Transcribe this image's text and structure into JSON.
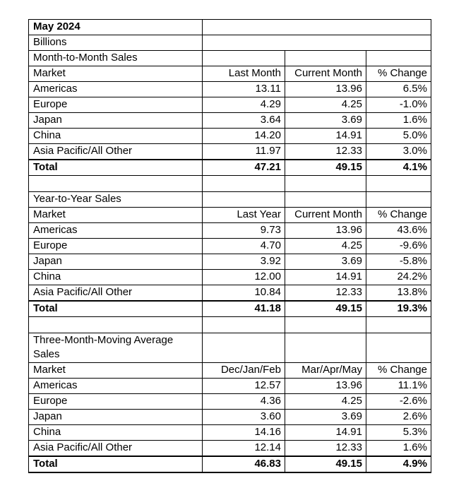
{
  "page": {
    "background_color": "#ffffff",
    "text_color": "#000000",
    "border_color": "#000000"
  },
  "report": {
    "title": "May 2024",
    "units": "Billions",
    "total_label": "Total",
    "sections": [
      {
        "label": "Month-to-Month Sales",
        "headers": [
          "Market",
          "Last Month",
          "Current Month",
          "% Change"
        ],
        "rows": [
          [
            "Americas",
            "13.11",
            "13.96",
            "6.5%"
          ],
          [
            "Europe",
            "4.29",
            "4.25",
            "-1.0%"
          ],
          [
            "Japan",
            "3.64",
            "3.69",
            "1.6%"
          ],
          [
            "China",
            "14.20",
            "14.91",
            "5.0%"
          ],
          [
            "Asia Pacific/All Other",
            "11.97",
            "12.33",
            "3.0%"
          ]
        ],
        "total": [
          "Total",
          "47.21",
          "49.15",
          "4.1%"
        ]
      },
      {
        "label": "Year-to-Year Sales",
        "headers": [
          "Market",
          "Last Year",
          "Current Month",
          "% Change"
        ],
        "rows": [
          [
            "Americas",
            "9.73",
            "13.96",
            "43.6%"
          ],
          [
            "Europe",
            "4.70",
            "4.25",
            "-9.6%"
          ],
          [
            "Japan",
            "3.92",
            "3.69",
            "-5.8%"
          ],
          [
            "China",
            "12.00",
            "14.91",
            "24.2%"
          ],
          [
            "Asia Pacific/All Other",
            "10.84",
            "12.33",
            "13.8%"
          ]
        ],
        "total": [
          "Total",
          "41.18",
          "49.15",
          "19.3%"
        ]
      },
      {
        "label": "Three-Month-Moving Average Sales",
        "headers": [
          "Market",
          "Dec/Jan/Feb",
          "Mar/Apr/May",
          "% Change"
        ],
        "rows": [
          [
            "Americas",
            "12.57",
            "13.96",
            "11.1%"
          ],
          [
            "Europe",
            "4.36",
            "4.25",
            "-2.6%"
          ],
          [
            "Japan",
            "3.60",
            "3.69",
            "2.6%"
          ],
          [
            "China",
            "14.16",
            "14.91",
            "5.3%"
          ],
          [
            "Asia Pacific/All Other",
            "12.14",
            "12.33",
            "1.6%"
          ]
        ],
        "total": [
          "Total",
          "46.83",
          "49.15",
          "4.9%"
        ]
      }
    ]
  }
}
